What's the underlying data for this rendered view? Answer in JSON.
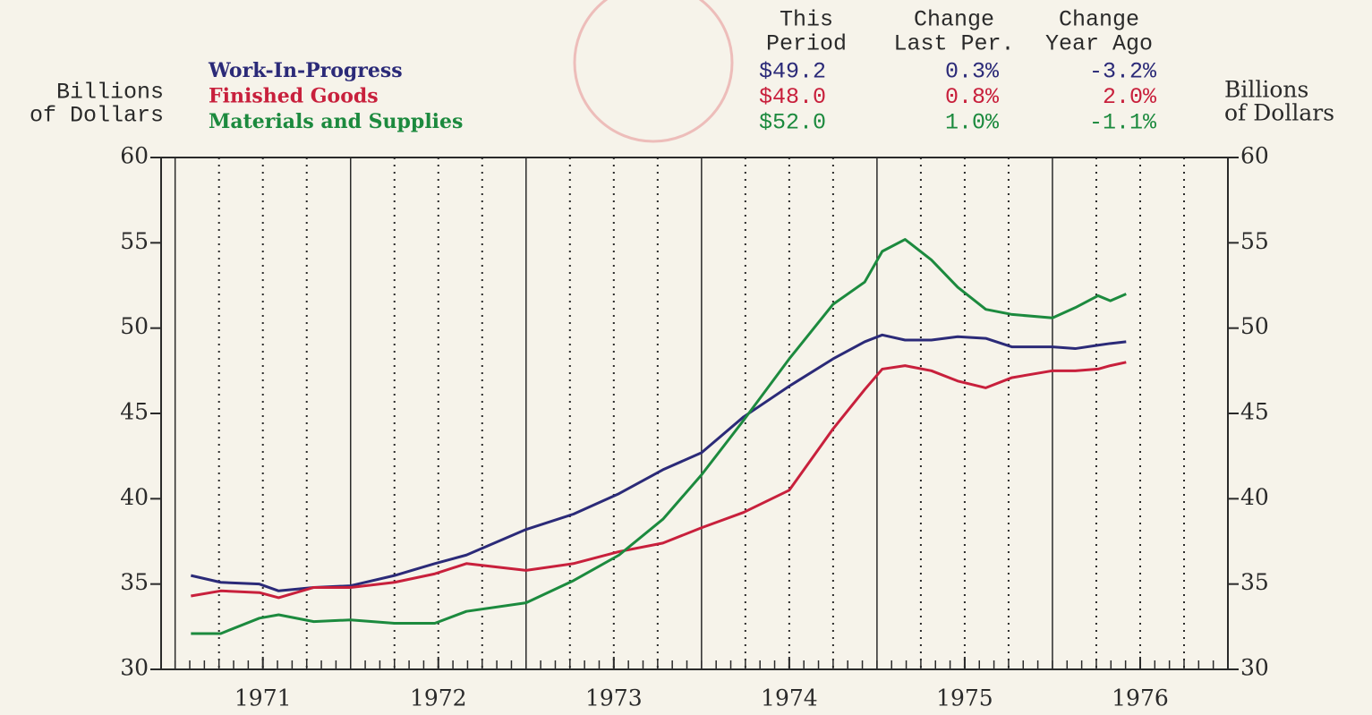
{
  "chart_data": {
    "type": "line",
    "y_label": [
      "Billions",
      "of Dollars"
    ],
    "y2_label": [
      "Billions",
      "of Dollars"
    ],
    "xlim": [
      1970.92,
      1977.0
    ],
    "xticks": [
      {
        "value": 1971.5,
        "label": "1971"
      },
      {
        "value": 1972.5,
        "label": "1972"
      },
      {
        "value": 1973.5,
        "label": "1973"
      },
      {
        "value": 1974.5,
        "label": "1974"
      },
      {
        "value": 1975.5,
        "label": "1975"
      },
      {
        "value": 1976.5,
        "label": "1976"
      }
    ],
    "ylim": [
      30,
      60
    ],
    "yticks": [
      30,
      35,
      40,
      45,
      50,
      55,
      60
    ],
    "y2lim": [
      30,
      60
    ],
    "y2ticks": [
      30,
      35,
      40,
      45,
      50,
      55,
      60
    ],
    "x": [
      1971.09,
      1971.26,
      1971.48,
      1971.59,
      1971.79,
      1972.0,
      1972.25,
      1972.48,
      1972.66,
      1973.0,
      1973.27,
      1973.53,
      1973.78,
      1974.0,
      1974.24,
      1974.5,
      1974.75,
      1974.93,
      1975.03,
      1975.16,
      1975.31,
      1975.46,
      1975.62,
      1975.77,
      1976.0,
      1976.13,
      1976.26,
      1976.33,
      1976.42
    ],
    "series": [
      {
        "name": "Work-In-Progress",
        "color": "#2b2a78",
        "values": [
          35.5,
          35.1,
          35.0,
          34.6,
          34.8,
          34.9,
          35.5,
          36.2,
          36.7,
          38.2,
          39.1,
          40.3,
          41.7,
          42.7,
          44.8,
          46.6,
          48.2,
          49.2,
          49.6,
          49.3,
          49.3,
          49.5,
          49.4,
          48.9,
          48.9,
          48.8,
          49.0,
          49.1,
          49.2
        ]
      },
      {
        "name": "Finished Goods",
        "color": "#c8203c",
        "values": [
          34.3,
          34.6,
          34.5,
          34.2,
          34.8,
          34.8,
          35.1,
          35.6,
          36.2,
          35.8,
          36.2,
          36.9,
          37.4,
          38.3,
          39.2,
          40.5,
          44.1,
          46.4,
          47.6,
          47.8,
          47.5,
          46.9,
          46.5,
          47.1,
          47.5,
          47.5,
          47.6,
          47.8,
          48.0
        ]
      },
      {
        "name": "Materials and Supplies",
        "color": "#1c8a3e",
        "values": [
          32.1,
          32.1,
          33.0,
          33.2,
          32.8,
          32.9,
          32.7,
          32.7,
          33.4,
          33.9,
          35.2,
          36.7,
          38.8,
          41.4,
          44.6,
          48.2,
          51.4,
          52.7,
          54.5,
          55.2,
          54.0,
          52.4,
          51.1,
          50.8,
          50.6,
          51.2,
          51.9,
          51.6,
          52.0
        ]
      }
    ],
    "table": {
      "headers": [
        [
          "This",
          "Period"
        ],
        [
          "Change",
          "Last Per."
        ],
        [
          "Change",
          "Year Ago"
        ]
      ],
      "rows": [
        [
          "$49.2",
          "0.3%",
          "-3.2%"
        ],
        [
          "$48.0",
          "0.8%",
          "2.0%"
        ],
        [
          "$52.0",
          "1.0%",
          "-1.1%"
        ]
      ]
    }
  }
}
